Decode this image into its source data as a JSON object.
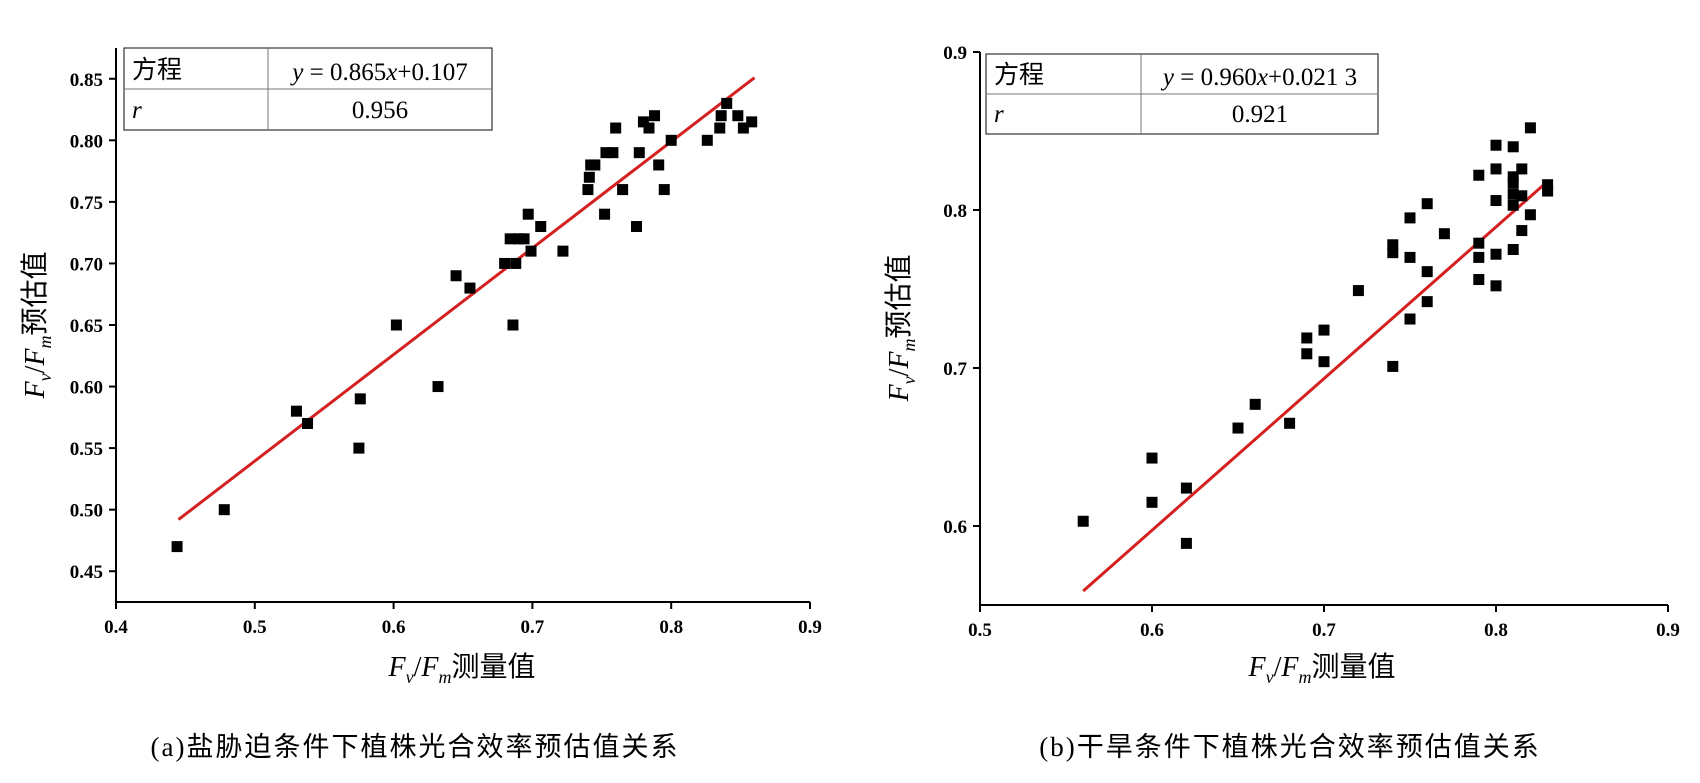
{
  "chart_data": [
    {
      "type": "scatter",
      "caption": "(a)盐胁迫条件下植株光合效率预估值关系",
      "xlabel": {
        "F1": "F",
        "s1": "v",
        "slash": "/",
        "F2": "F",
        "s2": "m",
        "suffix": "测量值"
      },
      "ylabel": {
        "F1": "F",
        "s1": "v",
        "slash": "/",
        "F2": "F",
        "s2": "m",
        "suffix": "预估值"
      },
      "xlim": [
        0.4,
        0.9
      ],
      "ylim": [
        0.425,
        0.875
      ],
      "x_ticks": [
        0.4,
        0.5,
        0.6,
        0.7,
        0.8,
        0.9
      ],
      "x_tick_labels": [
        "0.4",
        "0.5",
        "0.6",
        "0.7",
        "0.8",
        "0.9"
      ],
      "y_ticks": [
        0.45,
        0.5,
        0.55,
        0.6,
        0.65,
        0.7,
        0.75,
        0.8,
        0.85
      ],
      "y_tick_labels": [
        "0.45",
        "0.50",
        "0.55",
        "0.60",
        "0.65",
        "0.70",
        "0.75",
        "0.80",
        "0.85"
      ],
      "marker_color": "#000000",
      "fit_color": "#d42020",
      "fit": {
        "slope": 0.865,
        "intercept": 0.107,
        "x_range": [
          0.445,
          0.86
        ]
      },
      "stats_table": {
        "equation_label": "方程",
        "equation_parts": [
          "y",
          " = 0.865",
          "x",
          "+0.107"
        ],
        "r_label": "r",
        "r_value": "0.956"
      },
      "points": [
        [
          0.444,
          0.47
        ],
        [
          0.478,
          0.5
        ],
        [
          0.53,
          0.58
        ],
        [
          0.538,
          0.57
        ],
        [
          0.575,
          0.55
        ],
        [
          0.576,
          0.59
        ],
        [
          0.602,
          0.65
        ],
        [
          0.632,
          0.6
        ],
        [
          0.645,
          0.69
        ],
        [
          0.655,
          0.68
        ],
        [
          0.68,
          0.7
        ],
        [
          0.684,
          0.72
        ],
        [
          0.686,
          0.65
        ],
        [
          0.688,
          0.7
        ],
        [
          0.69,
          0.72
        ],
        [
          0.694,
          0.72
        ],
        [
          0.697,
          0.74
        ],
        [
          0.699,
          0.71
        ],
        [
          0.706,
          0.73
        ],
        [
          0.722,
          0.71
        ],
        [
          0.74,
          0.76
        ],
        [
          0.741,
          0.77
        ],
        [
          0.742,
          0.78
        ],
        [
          0.745,
          0.78
        ],
        [
          0.752,
          0.74
        ],
        [
          0.753,
          0.79
        ],
        [
          0.758,
          0.79
        ],
        [
          0.76,
          0.81
        ],
        [
          0.765,
          0.76
        ],
        [
          0.775,
          0.73
        ],
        [
          0.777,
          0.79
        ],
        [
          0.78,
          0.815
        ],
        [
          0.784,
          0.81
        ],
        [
          0.788,
          0.82
        ],
        [
          0.791,
          0.78
        ],
        [
          0.795,
          0.76
        ],
        [
          0.8,
          0.8
        ],
        [
          0.826,
          0.8
        ],
        [
          0.835,
          0.81
        ],
        [
          0.836,
          0.82
        ],
        [
          0.84,
          0.83
        ],
        [
          0.848,
          0.82
        ],
        [
          0.852,
          0.81
        ],
        [
          0.858,
          0.815
        ]
      ]
    },
    {
      "type": "scatter",
      "caption": "(b)干旱条件下植株光合效率预估值关系",
      "xlabel": {
        "F1": "F",
        "s1": "v",
        "slash": "/",
        "F2": "F",
        "s2": "m",
        "suffix": "测量值"
      },
      "ylabel": {
        "F1": "F",
        "s1": "v",
        "slash": "/",
        "F2": "F",
        "s2": "m",
        "suffix": "预估值"
      },
      "xlim": [
        0.5,
        0.9
      ],
      "ylim": [
        0.55,
        0.9
      ],
      "x_ticks": [
        0.5,
        0.6,
        0.7,
        0.8,
        0.9
      ],
      "x_tick_labels": [
        "0.5",
        "0.6",
        "0.7",
        "0.8",
        "0.9"
      ],
      "y_ticks": [
        0.6,
        0.7,
        0.8,
        0.9
      ],
      "y_tick_labels": [
        "0.6",
        "0.7",
        "0.8",
        "0.9"
      ],
      "marker_color": "#000000",
      "fit_color": "#d42020",
      "fit": {
        "slope": 0.96,
        "intercept": 0.0213,
        "x_range": [
          0.56,
          0.83
        ]
      },
      "stats_table": {
        "equation_label": "方程",
        "equation_parts": [
          "y",
          " = 0.960",
          "x",
          "+0.021 3"
        ],
        "r_label": "r",
        "r_value": "0.921"
      },
      "points": [
        [
          0.56,
          0.603
        ],
        [
          0.6,
          0.643
        ],
        [
          0.6,
          0.615
        ],
        [
          0.62,
          0.624
        ],
        [
          0.62,
          0.589
        ],
        [
          0.65,
          0.662
        ],
        [
          0.66,
          0.677
        ],
        [
          0.68,
          0.665
        ],
        [
          0.69,
          0.719
        ],
        [
          0.69,
          0.709
        ],
        [
          0.7,
          0.724
        ],
        [
          0.7,
          0.704
        ],
        [
          0.72,
          0.749
        ],
        [
          0.74,
          0.778
        ],
        [
          0.74,
          0.773
        ],
        [
          0.74,
          0.701
        ],
        [
          0.75,
          0.795
        ],
        [
          0.75,
          0.77
        ],
        [
          0.75,
          0.731
        ],
        [
          0.76,
          0.804
        ],
        [
          0.76,
          0.761
        ],
        [
          0.76,
          0.742
        ],
        [
          0.77,
          0.785
        ],
        [
          0.79,
          0.822
        ],
        [
          0.79,
          0.779
        ],
        [
          0.79,
          0.77
        ],
        [
          0.79,
          0.756
        ],
        [
          0.8,
          0.841
        ],
        [
          0.8,
          0.826
        ],
        [
          0.8,
          0.806
        ],
        [
          0.8,
          0.772
        ],
        [
          0.8,
          0.752
        ],
        [
          0.81,
          0.84
        ],
        [
          0.81,
          0.821
        ],
        [
          0.81,
          0.817
        ],
        [
          0.81,
          0.81
        ],
        [
          0.81,
          0.803
        ],
        [
          0.81,
          0.775
        ],
        [
          0.815,
          0.826
        ],
        [
          0.815,
          0.809
        ],
        [
          0.815,
          0.787
        ],
        [
          0.82,
          0.852
        ],
        [
          0.82,
          0.797
        ],
        [
          0.83,
          0.816
        ],
        [
          0.83,
          0.812
        ]
      ]
    }
  ]
}
